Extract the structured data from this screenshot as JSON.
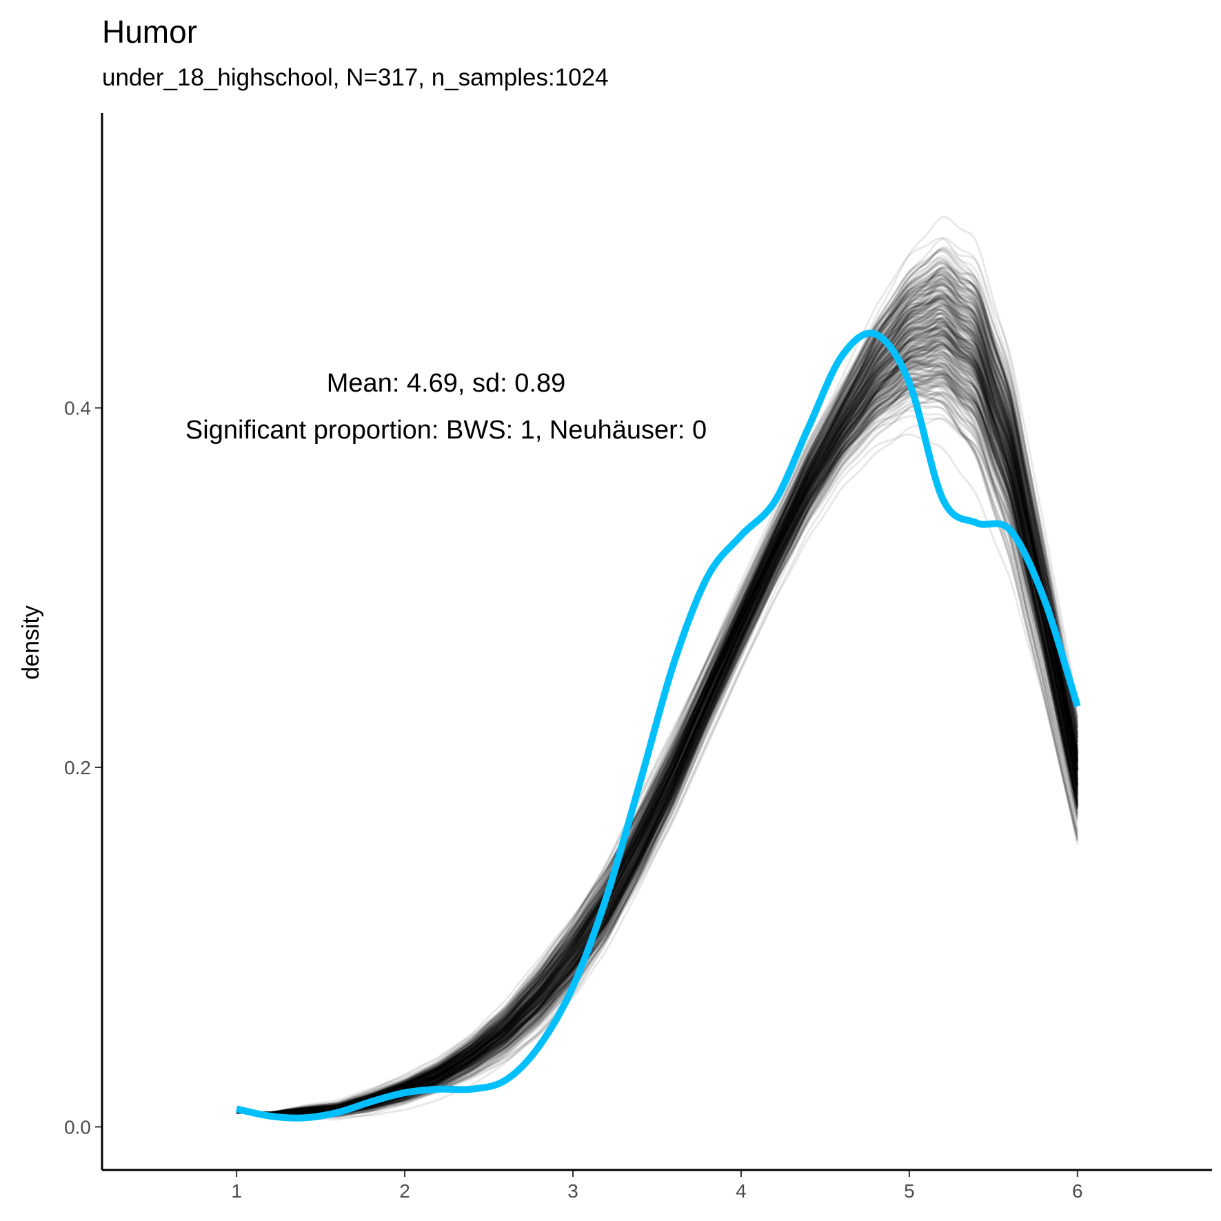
{
  "chart_data": {
    "type": "line",
    "title": "Humor",
    "subtitle": "under_18_highschool, N=317, n_samples:1024",
    "xlabel": "",
    "ylabel": "density",
    "xlim": [
      0.2,
      6.8
    ],
    "ylim": [
      -0.024,
      0.564
    ],
    "x_ticks": [
      "1",
      "2",
      "3",
      "4",
      "5",
      "6"
    ],
    "y_ticks": [
      "0.0",
      "0.2",
      "0.4"
    ],
    "annotations": [
      "Mean: 4.69, sd: 0.89",
      "Significant proportion: BWS: 1, Neuhäuser: 0"
    ],
    "grid": false,
    "legend": "none",
    "colors": {
      "observed": "#00bfff",
      "samples": "#000000",
      "axis": "#000000",
      "tick_text": "#4d4d4d"
    },
    "series": [
      {
        "style": "thick-blue-line",
        "x": [
          1.0,
          1.2,
          1.4,
          1.6,
          1.8,
          2.0,
          2.2,
          2.4,
          2.6,
          2.8,
          3.0,
          3.2,
          3.4,
          3.6,
          3.8,
          4.0,
          4.2,
          4.4,
          4.6,
          4.8,
          5.0,
          5.2,
          5.4,
          5.6,
          5.8,
          6.0
        ],
        "y": [
          0.01,
          0.006,
          0.005,
          0.008,
          0.014,
          0.019,
          0.021,
          0.021,
          0.026,
          0.045,
          0.078,
          0.128,
          0.192,
          0.258,
          0.306,
          0.329,
          0.348,
          0.389,
          0.429,
          0.441,
          0.414,
          0.349,
          0.336,
          0.332,
          0.294,
          0.234
        ]
      },
      {
        "style": "sample-band-lower",
        "x": [
          1.0,
          1.2,
          1.4,
          1.6,
          1.8,
          2.0,
          2.2,
          2.4,
          2.6,
          2.8,
          3.0,
          3.2,
          3.4,
          3.6,
          3.8,
          4.0,
          4.2,
          4.4,
          4.6,
          4.8,
          5.0,
          5.2,
          5.4,
          5.6,
          5.8,
          6.0
        ],
        "y": [
          0.008,
          0.008,
          0.005,
          0.004,
          0.006,
          0.01,
          0.016,
          0.024,
          0.034,
          0.048,
          0.068,
          0.094,
          0.128,
          0.166,
          0.21,
          0.252,
          0.292,
          0.328,
          0.356,
          0.372,
          0.378,
          0.372,
          0.348,
          0.3,
          0.23,
          0.15
        ]
      },
      {
        "style": "sample-band-upper",
        "x": [
          1.0,
          1.2,
          1.4,
          1.6,
          1.8,
          2.0,
          2.2,
          2.4,
          2.6,
          2.8,
          3.0,
          3.2,
          3.4,
          3.6,
          3.8,
          4.0,
          4.2,
          4.4,
          4.6,
          4.8,
          5.0,
          5.2,
          5.4,
          5.6,
          5.8,
          6.0
        ],
        "y": [
          0.008,
          0.008,
          0.012,
          0.015,
          0.022,
          0.03,
          0.04,
          0.054,
          0.072,
          0.096,
          0.122,
          0.152,
          0.188,
          0.226,
          0.266,
          0.306,
          0.346,
          0.386,
          0.422,
          0.462,
          0.495,
          0.513,
          0.5,
          0.44,
          0.34,
          0.24
        ]
      },
      {
        "style": "sample-band-median",
        "x": [
          1.0,
          1.2,
          1.4,
          1.6,
          1.8,
          2.0,
          2.2,
          2.4,
          2.6,
          2.8,
          3.0,
          3.2,
          3.4,
          3.6,
          3.8,
          4.0,
          4.2,
          4.4,
          4.6,
          4.8,
          5.0,
          5.2,
          5.4,
          5.6,
          5.8,
          6.0
        ],
        "y": [
          0.008,
          0.008,
          0.008,
          0.01,
          0.014,
          0.02,
          0.027,
          0.037,
          0.05,
          0.068,
          0.093,
          0.123,
          0.158,
          0.196,
          0.238,
          0.279,
          0.318,
          0.357,
          0.392,
          0.42,
          0.444,
          0.45,
          0.431,
          0.37,
          0.29,
          0.2
        ]
      }
    ]
  }
}
